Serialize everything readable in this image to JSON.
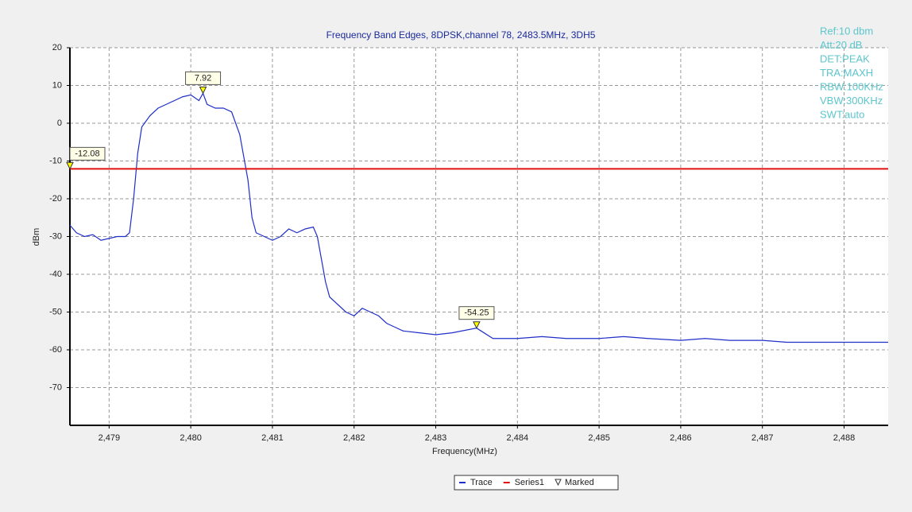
{
  "chart_data": {
    "type": "line",
    "title": "Frequency Band Edges, 8DPSK,channel 78, 2483.5MHz, 3DH5",
    "x_label": "Frequency(MHz)",
    "y_label": "dBm",
    "xlim": [
      2478.52,
      2488.54
    ],
    "ylim": [
      -80,
      20
    ],
    "xticks": [
      {
        "value": 2479,
        "label": "2,479"
      },
      {
        "value": 2480,
        "label": "2,480"
      },
      {
        "value": 2481,
        "label": "2,481"
      },
      {
        "value": 2482,
        "label": "2,482"
      },
      {
        "value": 2483,
        "label": "2,483"
      },
      {
        "value": 2484,
        "label": "2,484"
      },
      {
        "value": 2485,
        "label": "2,485"
      },
      {
        "value": 2486,
        "label": "2,486"
      },
      {
        "value": 2487,
        "label": "2,487"
      },
      {
        "value": 2488,
        "label": "2,488"
      }
    ],
    "yticks": [
      -70,
      -60,
      -50,
      -40,
      -30,
      -20,
      -10,
      0,
      10,
      20
    ],
    "grid": true,
    "series": [
      {
        "name": "Trace",
        "color": "#1f2fc8",
        "x": [
          2478.52,
          2478.6,
          2478.7,
          2478.8,
          2478.9,
          2479.0,
          2479.1,
          2479.2,
          2479.25,
          2479.3,
          2479.35,
          2479.4,
          2479.5,
          2479.6,
          2479.7,
          2479.8,
          2479.9,
          2480.0,
          2480.1,
          2480.15,
          2480.2,
          2480.3,
          2480.4,
          2480.5,
          2480.6,
          2480.7,
          2480.75,
          2480.8,
          2480.9,
          2481.0,
          2481.1,
          2481.2,
          2481.3,
          2481.4,
          2481.5,
          2481.55,
          2481.6,
          2481.65,
          2481.7,
          2481.8,
          2481.9,
          2482.0,
          2482.1,
          2482.2,
          2482.3,
          2482.4,
          2482.5,
          2482.6,
          2482.8,
          2483.0,
          2483.2,
          2483.5,
          2483.7,
          2484.0,
          2484.3,
          2484.6,
          2485.0,
          2485.3,
          2485.6,
          2486.0,
          2486.3,
          2486.6,
          2487.0,
          2487.3,
          2487.6,
          2488.0,
          2488.3,
          2488.54
        ],
        "values": [
          -27,
          -29,
          -30,
          -29.5,
          -31,
          -30.5,
          -30,
          -30,
          -29,
          -20,
          -8,
          -1,
          2,
          4,
          5,
          6,
          7,
          7.5,
          6,
          7.92,
          5,
          4,
          4,
          3,
          -3,
          -15,
          -25,
          -29,
          -30,
          -31,
          -30,
          -28,
          -29,
          -28,
          -27.5,
          -30,
          -36,
          -42,
          -46,
          -48,
          -50,
          -51,
          -49,
          -50,
          -51,
          -53,
          -54,
          -55,
          -55.5,
          -56,
          -55.5,
          -54.25,
          -57,
          -57,
          -56.5,
          -57,
          -57,
          -56.5,
          -57,
          -57.5,
          -57,
          -57.5,
          -57.5,
          -58,
          -58,
          -58,
          -58,
          -58
        ]
      },
      {
        "name": "Series1",
        "color": "#e01010",
        "x": [
          2478.52,
          2488.54
        ],
        "values": [
          -12.08,
          -12.08
        ]
      }
    ],
    "markers": [
      {
        "x": 2478.52,
        "value": -12.08
      },
      {
        "x": 2480.15,
        "value": 7.92
      },
      {
        "x": 2483.5,
        "value": -54.25
      }
    ],
    "marker_legend": "Marked",
    "annotations": [
      "Ref:10 dbm",
      "Att:20 dB",
      "DET:PEAK",
      "TRA:MAXH",
      "RBW:100KHz",
      "VBW:300KHz",
      "SWT:auto"
    ]
  }
}
